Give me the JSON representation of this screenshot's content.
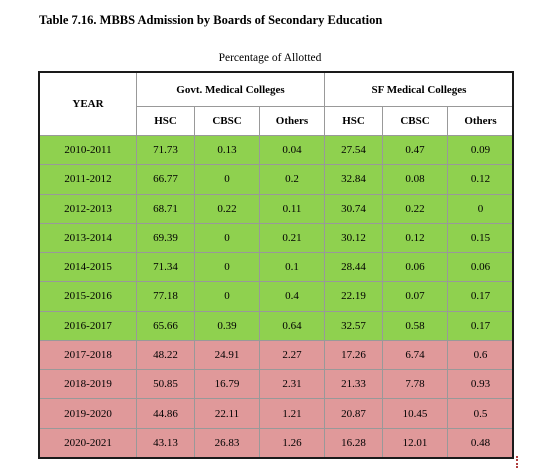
{
  "title": "Table 7.16. MBBS Admission by Boards of Secondary Education",
  "subtitle": "Percentage of Allotted",
  "headers": {
    "year": "YEAR",
    "govt": "Govt. Medical Colleges",
    "sf": "SF Medical Colleges",
    "cols": [
      "HSC",
      "CBSC",
      "Others",
      "HSC",
      "CBSC",
      "Others"
    ]
  },
  "rows": [
    {
      "year": "2010-2011",
      "v": [
        "71.73",
        "0.13",
        "0.04",
        "27.54",
        "0.47",
        "0.09"
      ]
    },
    {
      "year": "2011-2012",
      "v": [
        "66.77",
        "0",
        "0.2",
        "32.84",
        "0.08",
        "0.12"
      ]
    },
    {
      "year": "2012-2013",
      "v": [
        "68.71",
        "0.22",
        "0.11",
        "30.74",
        "0.22",
        "0"
      ]
    },
    {
      "year": "2013-2014",
      "v": [
        "69.39",
        "0",
        "0.21",
        "30.12",
        "0.12",
        "0.15"
      ]
    },
    {
      "year": "2014-2015",
      "v": [
        "71.34",
        "0",
        "0.1",
        "28.44",
        "0.06",
        "0.06"
      ]
    },
    {
      "year": "2015-2016",
      "v": [
        "77.18",
        "0",
        "0.4",
        "22.19",
        "0.07",
        "0.17"
      ]
    },
    {
      "year": "2016-2017",
      "v": [
        "65.66",
        "0.39",
        "0.64",
        "32.57",
        "0.58",
        "0.17"
      ]
    },
    {
      "year": "2017-2018",
      "v": [
        "48.22",
        "24.91",
        "2.27",
        "17.26",
        "6.74",
        "0.6"
      ]
    },
    {
      "year": "2018-2019",
      "v": [
        "50.85",
        "16.79",
        "2.31",
        "21.33",
        "7.78",
        "0.93"
      ]
    },
    {
      "year": "2019-2020",
      "v": [
        "44.86",
        "22.11",
        "1.21",
        "20.87",
        "10.45",
        "0.5"
      ]
    },
    {
      "year": "2020-2021",
      "v": [
        "43.13",
        "26.83",
        "1.26",
        "16.28",
        "12.01",
        "0.48"
      ]
    }
  ],
  "colors": {
    "green": "#8fd14f",
    "red": "#e0999a"
  }
}
